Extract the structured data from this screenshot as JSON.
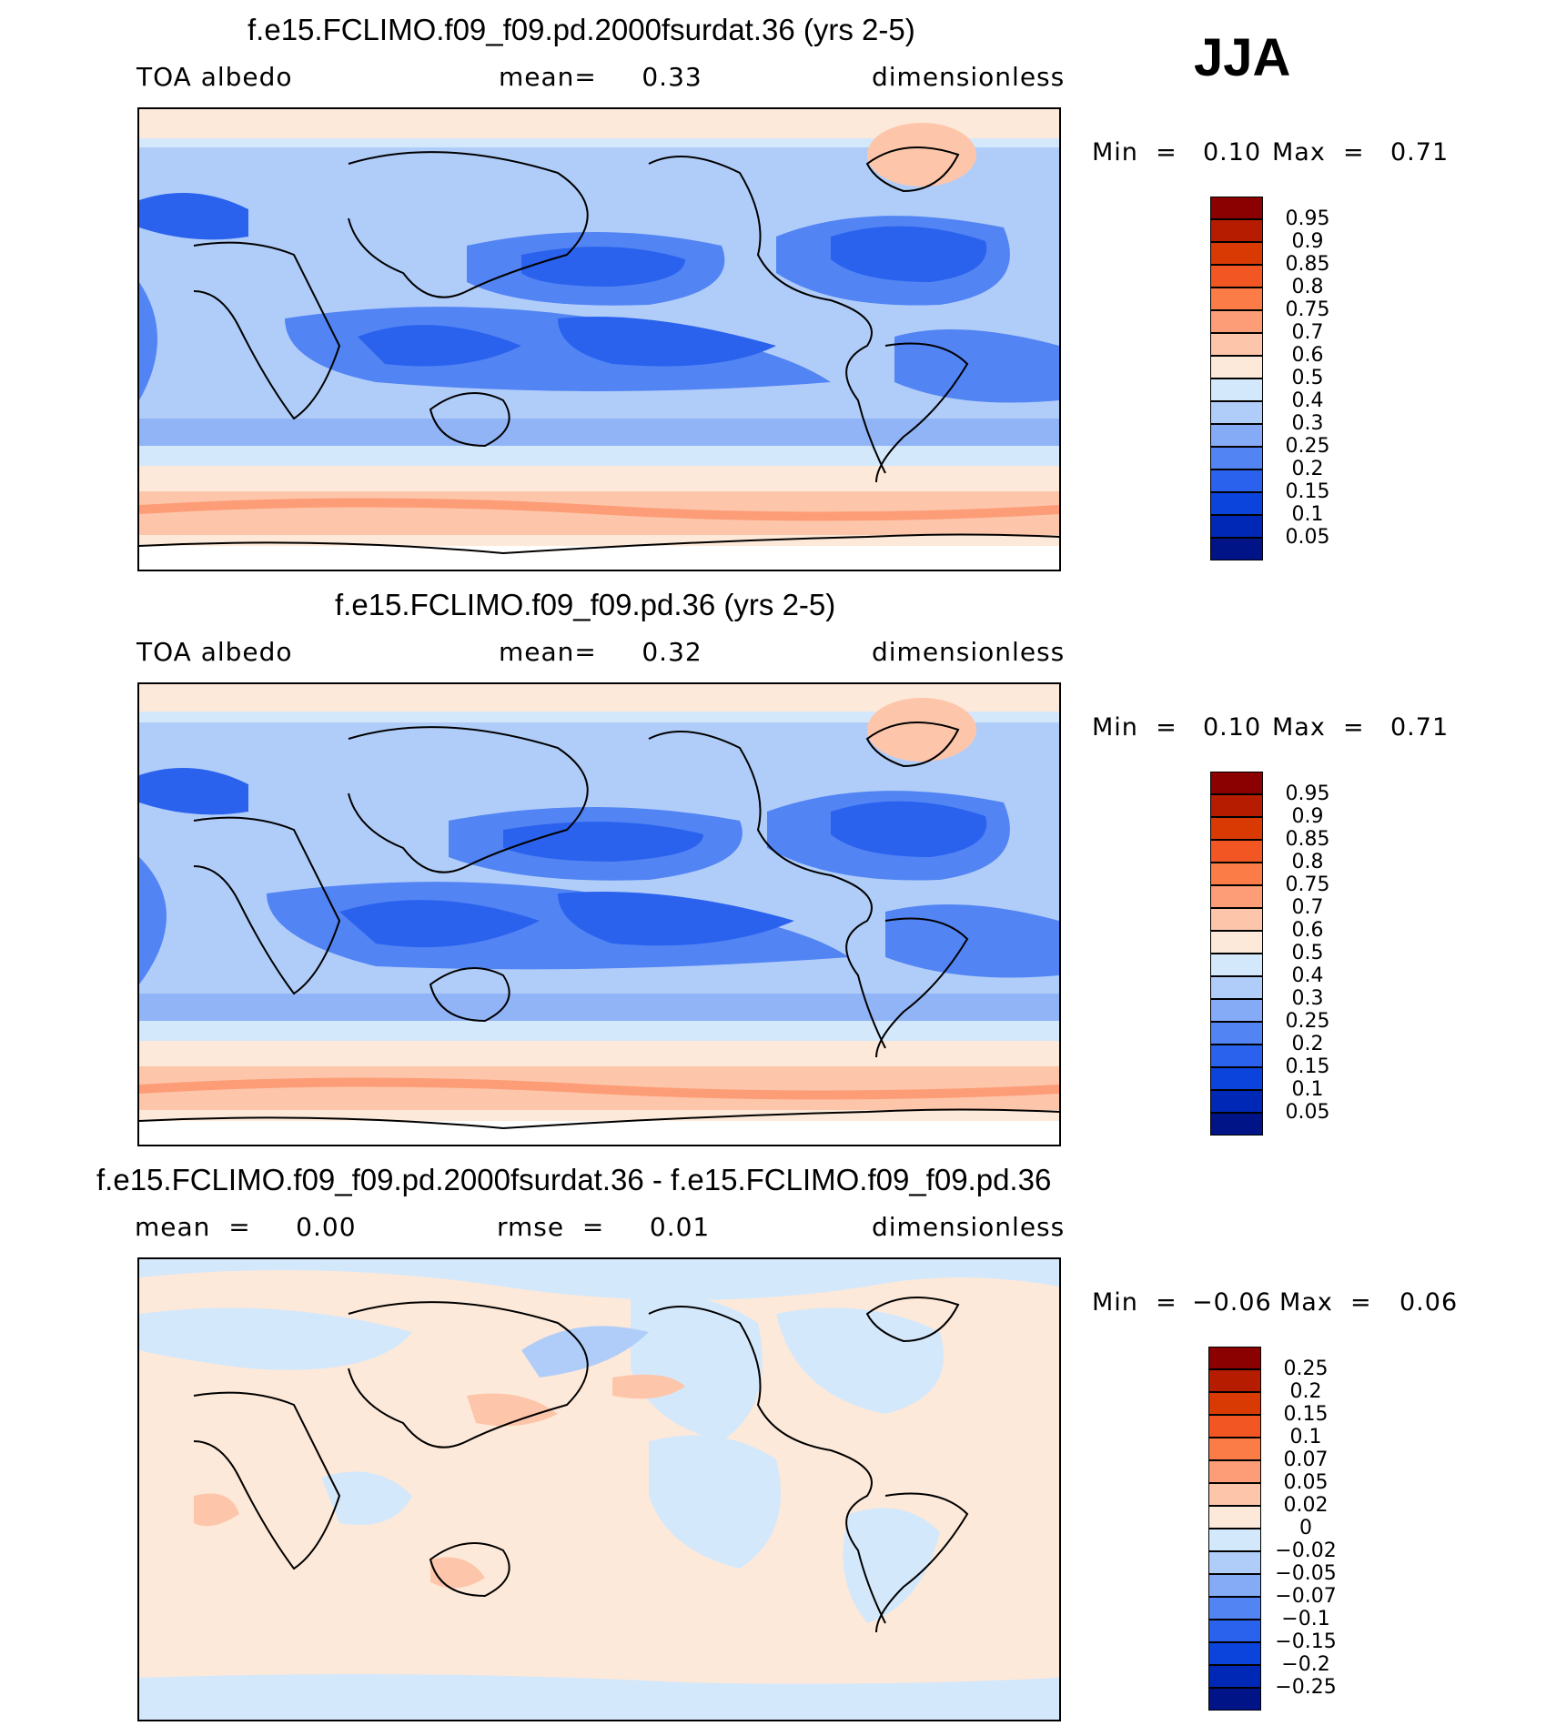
{
  "season_label": "JJA",
  "panels": [
    {
      "title": "f.e15.FCLIMO.f09_f09.pd.2000fsurdat.36 (yrs 2-5)",
      "left_text": "TOA  albedo",
      "mid_text": "mean=     0.33",
      "right_text": "dimensionless",
      "min_label": "Min  =",
      "min_value": "0.10",
      "max_label": "Max  =",
      "max_value": "0.71",
      "colorbar": {
        "labels": [
          "0.95",
          "0.9",
          "0.85",
          "0.8",
          "0.75",
          "0.7",
          "0.6",
          "0.5",
          "0.4",
          "0.3",
          "0.25",
          "0.2",
          "0.15",
          "0.1",
          "0.05"
        ],
        "colors": [
          "#8b0000",
          "#b51c00",
          "#d93a04",
          "#f25623",
          "#fb7c47",
          "#fc9d77",
          "#fdc6ab",
          "#fde9d9",
          "#d4e8fb",
          "#b0cdf9",
          "#85aaf6",
          "#5284f4",
          "#2a62ee",
          "#0a44dc",
          "#0028b6",
          "#001487"
        ]
      }
    },
    {
      "title": "f.e15.FCLIMO.f09_f09.pd.36 (yrs 2-5)",
      "left_text": "TOA  albedo",
      "mid_text": "mean=     0.32",
      "right_text": "dimensionless",
      "min_label": "Min  =",
      "min_value": "0.10",
      "max_label": "Max  =",
      "max_value": "0.71",
      "colorbar": {
        "labels": [
          "0.95",
          "0.9",
          "0.85",
          "0.8",
          "0.75",
          "0.7",
          "0.6",
          "0.5",
          "0.4",
          "0.3",
          "0.25",
          "0.2",
          "0.15",
          "0.1",
          "0.05"
        ],
        "colors": [
          "#8b0000",
          "#b51c00",
          "#d93a04",
          "#f25623",
          "#fb7c47",
          "#fc9d77",
          "#fdc6ab",
          "#fde9d9",
          "#d4e8fb",
          "#b0cdf9",
          "#85aaf6",
          "#5284f4",
          "#2a62ee",
          "#0a44dc",
          "#0028b6",
          "#001487"
        ]
      }
    },
    {
      "title": "f.e15.FCLIMO.f09_f09.pd.2000fsurdat.36 - f.e15.FCLIMO.f09_f09.pd.36",
      "left_text": "mean  =     0.00",
      "mid_text": "rmse  =     0.01",
      "right_text": "dimensionless",
      "min_label": "Min  =",
      "min_value": "−0.06",
      "max_label": "Max  =",
      "max_value": "0.06",
      "colorbar": {
        "labels": [
          "0.25",
          "0.2",
          "0.15",
          "0.1",
          "0.07",
          "0.05",
          "0.02",
          "0",
          "−0.02",
          "−0.05",
          "−0.07",
          "−0.1",
          "−0.15",
          "−0.2",
          "−0.25"
        ],
        "colors": [
          "#8b0000",
          "#b51c00",
          "#d93a04",
          "#f25623",
          "#fb7c47",
          "#fc9d77",
          "#fdc6ab",
          "#fde9d9",
          "#d4e8fb",
          "#b0cdf9",
          "#85aaf6",
          "#5284f4",
          "#2a62ee",
          "#0a44dc",
          "#0028b6",
          "#001487"
        ]
      }
    }
  ]
}
